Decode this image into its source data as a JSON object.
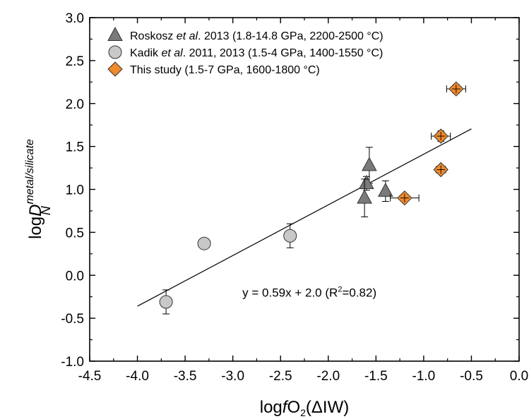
{
  "chart_data": {
    "type": "scatter",
    "xlim": [
      -4.5,
      0.0
    ],
    "ylim": [
      -1.0,
      3.0
    ],
    "x_ticks": [
      -4.5,
      -4.0,
      -3.5,
      -3.0,
      -2.5,
      -2.0,
      -1.5,
      -1.0,
      -0.5,
      0.0
    ],
    "y_ticks": [
      -1.0,
      -0.5,
      0.0,
      0.5,
      1.0,
      1.5,
      2.0,
      2.5,
      3.0
    ],
    "x_tick_labels": [
      "-4.5",
      "-4.0",
      "-3.5",
      "-3.0",
      "-2.5",
      "-2.0",
      "-1.5",
      "-1.0",
      "-0.5",
      "0.0"
    ],
    "y_tick_labels": [
      "-1.0",
      "-0.5",
      "0.0",
      "0.5",
      "1.0",
      "1.5",
      "2.0",
      "2.5",
      "3.0"
    ],
    "xlabel": {
      "pre": "log",
      "italic": "f",
      "main": "O",
      "sub": "2",
      "post": "(ΔIW)"
    },
    "ylabel": {
      "main": "log",
      "italic": "D",
      "sup": "metal/silicate",
      "sub": "N"
    },
    "grid": false,
    "legend_position": "top-left",
    "series": [
      {
        "name": "Roskosz et al. 2013 (1.8-14.8 GPa, 2200-2500 °C)",
        "legend": {
          "a": "Roskosz ",
          "i": "et al",
          "b": ". 2013 (1.8-14.8 GPa, 2200-2500 °C)"
        },
        "marker": "triangle",
        "color": "#7a7a7a",
        "points": [
          {
            "x": -1.57,
            "y": 1.28,
            "yerr": 0.21,
            "xerr": 0
          },
          {
            "x": -1.6,
            "y": 1.07,
            "yerr": 0.08,
            "xerr": 0
          },
          {
            "x": -1.62,
            "y": 0.9,
            "yerr": 0.22,
            "xerr": 0
          },
          {
            "x": -1.4,
            "y": 0.98,
            "yerr": 0.12,
            "xerr": 0
          }
        ]
      },
      {
        "name": "Kadik et al. 2011, 2013 (1.5-4 GPa, 1400-1550 °C)",
        "legend": {
          "a": "Kadik ",
          "i": "et al",
          "b": ". 2011, 2013 (1.5-4 GPa, 1400-1550 °C)"
        },
        "marker": "circle",
        "color": "#c8c8c8",
        "points": [
          {
            "x": -3.3,
            "y": 0.37,
            "yerr": 0.05,
            "xerr": 0
          },
          {
            "x": -2.4,
            "y": 0.46,
            "yerr": 0.14,
            "xerr": 0
          },
          {
            "x": -3.7,
            "y": -0.31,
            "yerr": 0.14,
            "xerr": 0
          }
        ]
      },
      {
        "name": "This study (1.5-7 GPa, 1600-1800 °C)",
        "legend": {
          "a": "This study (1.5-7 GPa, 1600-1800 °C)",
          "i": "",
          "b": ""
        },
        "marker": "diamond",
        "color": "#f08a2c",
        "points": [
          {
            "x": -0.66,
            "y": 2.17,
            "yerr": 0.05,
            "xerr": 0.1
          },
          {
            "x": -0.82,
            "y": 1.62,
            "yerr": 0.06,
            "xerr": 0.1
          },
          {
            "x": -0.82,
            "y": 1.23,
            "yerr": 0.04,
            "xerr": 0.05
          },
          {
            "x": -1.2,
            "y": 0.9,
            "yerr": 0.04,
            "xerr": 0.15
          }
        ]
      }
    ],
    "fit_line": {
      "slope": 0.59,
      "intercept": 2.0,
      "x_range": [
        -4.0,
        -0.5
      ]
    },
    "annotation": {
      "pre": "y = 0.59x + 2.0 (R",
      "sup": "2",
      "post": "=0.82)",
      "x": -2.9,
      "y": -0.25
    }
  }
}
